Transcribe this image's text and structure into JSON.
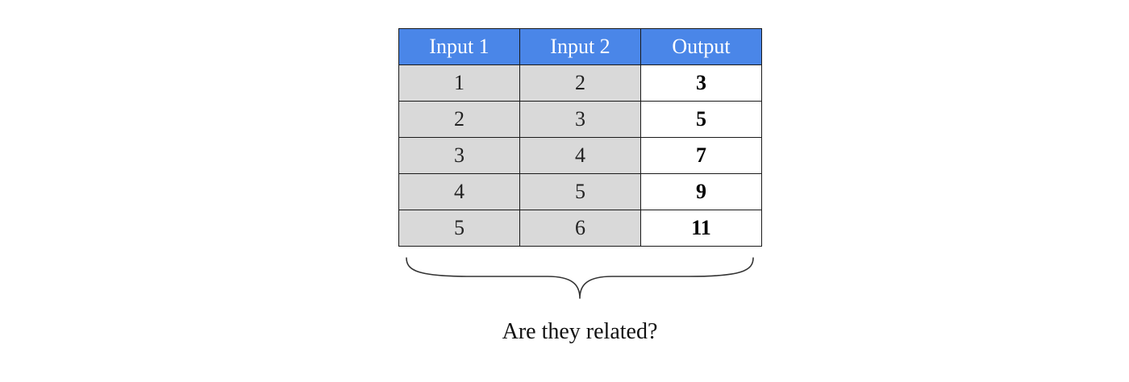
{
  "table": {
    "headers": [
      "Input 1",
      "Input 2",
      "Output"
    ],
    "rows": [
      [
        "1",
        "2",
        "3"
      ],
      [
        "2",
        "3",
        "5"
      ],
      [
        "3",
        "4",
        "7"
      ],
      [
        "4",
        "5",
        "9"
      ],
      [
        "5",
        "6",
        "11"
      ]
    ]
  },
  "caption": "Are they related?",
  "colors": {
    "header_background": "#4a86e8",
    "input_cell_background": "#d9d9d9",
    "output_cell_background": "#ffffff"
  }
}
